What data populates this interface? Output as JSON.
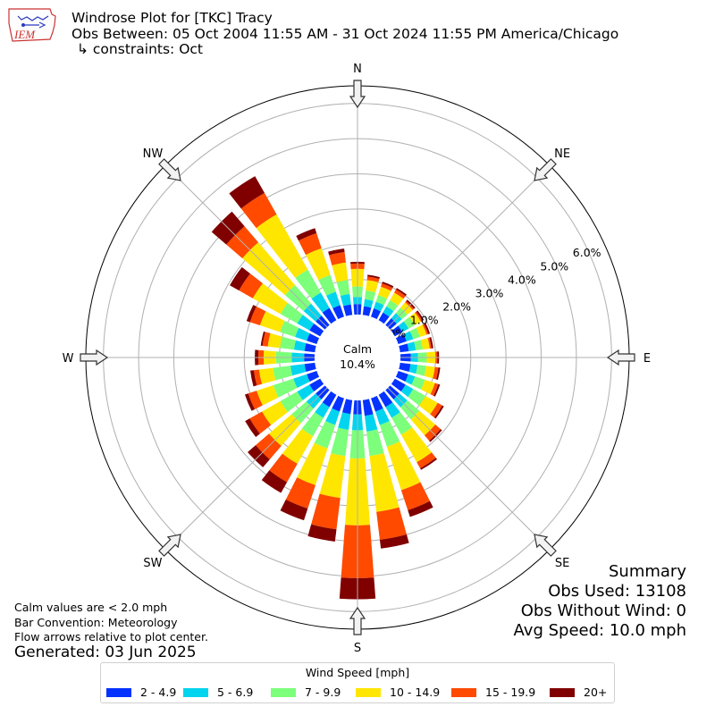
{
  "header": {
    "title": "Windrose Plot for [TKC] Tracy",
    "subtitle": "Obs Between: 05 Oct 2004 11:55 AM - 31 Oct 2024 11:55 PM America/Chicago",
    "constraints": "↳ constraints: Oct",
    "logo_text": "IEM"
  },
  "center": {
    "label": "Calm",
    "value": "10.4%"
  },
  "notes": {
    "line1": "Calm values are < 2.0 mph",
    "line2": "Bar Convention: Meteorology",
    "line3": "Flow arrows relative to plot center.",
    "generated": "Generated: 03 Jun 2025"
  },
  "summary": {
    "title": "Summary",
    "obs_used": "Obs Used: 13108",
    "obs_without_wind": "Obs Without Wind: 0",
    "avg_speed": "Avg Speed: 10.0 mph"
  },
  "chart_data": {
    "type": "windrose",
    "calm_percent": 10.4,
    "radial_ticks": [
      "0.0%",
      "1.0%",
      "2.0%",
      "3.0%",
      "4.0%",
      "5.0%",
      "6.0%"
    ],
    "radial_range": [
      0,
      6.5
    ],
    "compass_labels": [
      "N",
      "NE",
      "E",
      "SE",
      "S",
      "SW",
      "W",
      "NW"
    ],
    "legend_title": "Wind Speed [mph]",
    "speed_bins": [
      {
        "label": "2 - 4.9",
        "color": "#0432ff"
      },
      {
        "label": "5 - 6.9",
        "color": "#00d4ee"
      },
      {
        "label": "7 - 9.9",
        "color": "#7cff7a"
      },
      {
        "label": "10 - 14.9",
        "color": "#ffe600"
      },
      {
        "label": "15 - 19.9",
        "color": "#ff4a00"
      },
      {
        "label": "20+",
        "color": "#800000"
      }
    ],
    "directions": [
      {
        "dir": "N",
        "values": [
          0.3,
          0.2,
          0.3,
          0.5,
          0.15,
          0.05
        ]
      },
      {
        "dir": "NbE",
        "values": [
          0.25,
          0.2,
          0.25,
          0.3,
          0.1,
          0.05
        ]
      },
      {
        "dir": "NNE",
        "values": [
          0.25,
          0.2,
          0.2,
          0.25,
          0.1,
          0.05
        ]
      },
      {
        "dir": "NEbN",
        "values": [
          0.25,
          0.2,
          0.2,
          0.25,
          0.1,
          0.05
        ]
      },
      {
        "dir": "NE",
        "values": [
          0.25,
          0.2,
          0.2,
          0.2,
          0.05,
          0.05
        ]
      },
      {
        "dir": "NEbE",
        "values": [
          0.25,
          0.2,
          0.2,
          0.2,
          0.05,
          0.05
        ]
      },
      {
        "dir": "ENE",
        "values": [
          0.25,
          0.2,
          0.2,
          0.2,
          0.05,
          0.05
        ]
      },
      {
        "dir": "EbN",
        "values": [
          0.25,
          0.2,
          0.2,
          0.2,
          0.05,
          0.05
        ]
      },
      {
        "dir": "E",
        "values": [
          0.3,
          0.2,
          0.25,
          0.25,
          0.05,
          0.05
        ]
      },
      {
        "dir": "EbS",
        "values": [
          0.3,
          0.2,
          0.25,
          0.25,
          0.1,
          0.05
        ]
      },
      {
        "dir": "ESE",
        "values": [
          0.3,
          0.2,
          0.3,
          0.3,
          0.1,
          0.05
        ]
      },
      {
        "dir": "SEbE",
        "values": [
          0.35,
          0.25,
          0.4,
          0.4,
          0.15,
          0.05
        ]
      },
      {
        "dir": "SE",
        "values": [
          0.35,
          0.3,
          0.45,
          0.6,
          0.2,
          0.05
        ]
      },
      {
        "dir": "SEbS",
        "values": [
          0.4,
          0.35,
          0.55,
          0.9,
          0.2,
          0.05
        ]
      },
      {
        "dir": "SSE",
        "values": [
          0.4,
          0.4,
          0.65,
          1.3,
          0.6,
          0.2
        ]
      },
      {
        "dir": "SbE",
        "values": [
          0.45,
          0.45,
          0.7,
          1.6,
          0.8,
          0.25
        ]
      },
      {
        "dir": "S",
        "values": [
          0.4,
          0.45,
          0.8,
          1.9,
          1.5,
          0.6
        ]
      },
      {
        "dir": "SbW",
        "values": [
          0.4,
          0.45,
          0.75,
          1.2,
          0.9,
          0.35
        ]
      },
      {
        "dir": "SSW",
        "values": [
          0.4,
          0.4,
          0.7,
          1.1,
          0.7,
          0.35
        ]
      },
      {
        "dir": "SWbS",
        "values": [
          0.4,
          0.35,
          0.6,
          0.9,
          0.6,
          0.35
        ]
      },
      {
        "dir": "SW",
        "values": [
          0.35,
          0.35,
          0.55,
          0.85,
          0.5,
          0.3
        ]
      },
      {
        "dir": "SWbW",
        "values": [
          0.35,
          0.4,
          0.55,
          0.6,
          0.4,
          0.15
        ]
      },
      {
        "dir": "WSW",
        "values": [
          0.3,
          0.4,
          0.6,
          0.5,
          0.25,
          0.1
        ]
      },
      {
        "dir": "WbS",
        "values": [
          0.3,
          0.4,
          0.5,
          0.4,
          0.15,
          0.1
        ]
      },
      {
        "dir": "W",
        "values": [
          0.3,
          0.35,
          0.45,
          0.35,
          0.15,
          0.1
        ]
      },
      {
        "dir": "WbN",
        "values": [
          0.3,
          0.3,
          0.4,
          0.35,
          0.15,
          0.05
        ]
      },
      {
        "dir": "WNW",
        "values": [
          0.3,
          0.35,
          0.45,
          0.6,
          0.3,
          0.1
        ]
      },
      {
        "dir": "NWbW",
        "values": [
          0.35,
          0.4,
          0.55,
          0.9,
          0.45,
          0.3
        ]
      },
      {
        "dir": "NW",
        "values": [
          0.35,
          0.45,
          0.7,
          1.6,
          0.6,
          0.55
        ]
      },
      {
        "dir": "NWbN",
        "values": [
          0.4,
          0.5,
          0.75,
          1.8,
          0.7,
          0.55
        ]
      },
      {
        "dir": "NNW",
        "values": [
          0.35,
          0.4,
          0.5,
          0.8,
          0.45,
          0.15
        ]
      },
      {
        "dir": "NbW",
        "values": [
          0.3,
          0.3,
          0.4,
          0.5,
          0.3,
          0.1
        ]
      }
    ]
  }
}
